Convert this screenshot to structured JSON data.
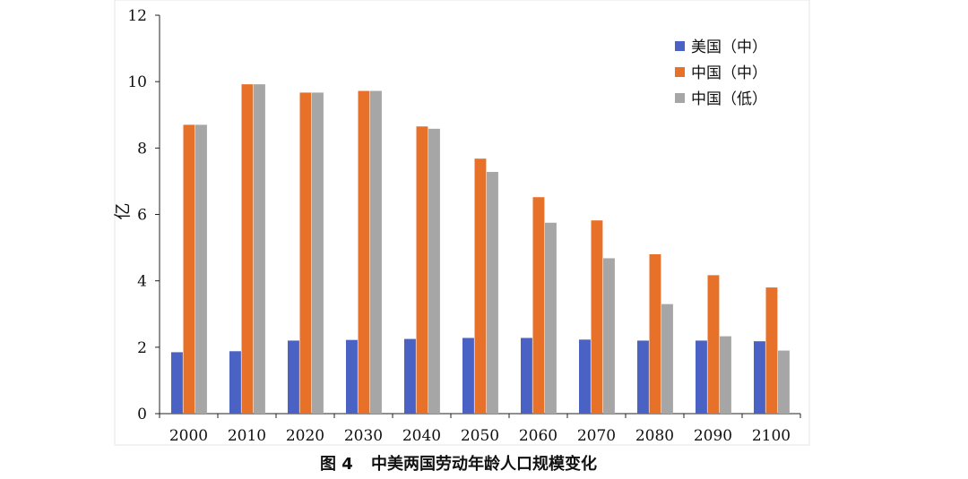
{
  "caption": {
    "figure_no": "图 4",
    "text": "中美两国劳动年龄人口规模变化"
  },
  "chart_data": {
    "type": "bar",
    "title": "",
    "xlabel": "",
    "ylabel": "亿",
    "ylim": [
      0,
      12
    ],
    "yticks": [
      0,
      2,
      4,
      6,
      8,
      10,
      12
    ],
    "grid": false,
    "legend_position": "top-right",
    "categories": [
      "2000",
      "2010",
      "2020",
      "2030",
      "2040",
      "2050",
      "2060",
      "2070",
      "2080",
      "2090",
      "2100"
    ],
    "series": [
      {
        "name": "美国（中）",
        "color": "#4a62c4",
        "values": [
          1.85,
          1.88,
          2.2,
          2.22,
          2.25,
          2.28,
          2.28,
          2.23,
          2.2,
          2.2,
          2.18
        ]
      },
      {
        "name": "中国（中）",
        "color": "#e8712a",
        "values": [
          8.7,
          9.92,
          9.67,
          9.72,
          8.65,
          7.68,
          6.52,
          5.82,
          4.8,
          4.17,
          3.8
        ]
      },
      {
        "name": "中国（低）",
        "color": "#a6a6a6",
        "values": [
          8.7,
          9.92,
          9.67,
          9.72,
          8.58,
          7.28,
          5.75,
          4.68,
          3.3,
          2.33,
          1.9
        ]
      }
    ]
  }
}
